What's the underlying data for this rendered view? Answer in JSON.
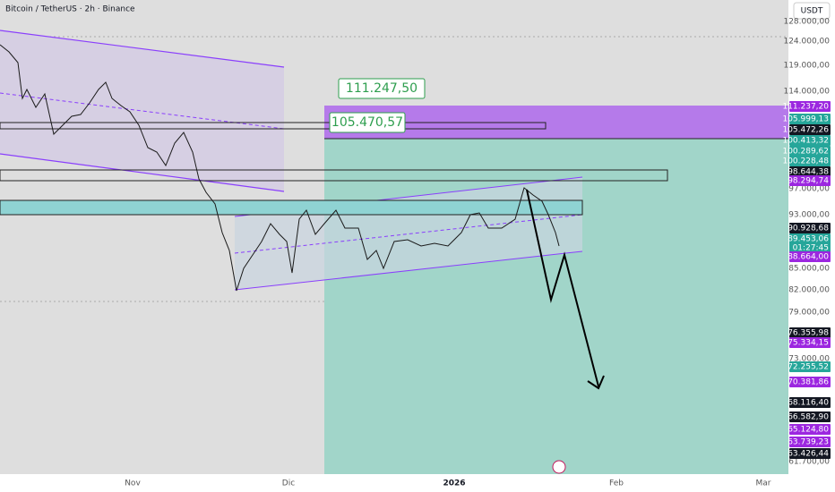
{
  "header": {
    "title": "Bitcoin / TetherUS · 2h · Binance",
    "currency_button": "USDT"
  },
  "price_scale": {
    "labels": [
      "128.000,00",
      "124.000,00",
      "119.000,00",
      "114.000,00",
      "97.000,00",
      "93.000,00",
      "85.000,00",
      "82.000,00",
      "79.000,00",
      "73.000,00",
      "61.700,00"
    ]
  },
  "price_tags": [
    "111.237,20",
    "105.999,13",
    "105.472,26",
    "100.413,32",
    "100.289,62",
    "100.228,48",
    "98.644,38",
    "98.294,74",
    "90.928,68",
    "89.453,06",
    "01:27:45",
    "88.664,00",
    "76.355,98",
    "75.334,15",
    "72.255,52",
    "70.381,86",
    "68.116,40",
    "66.582,90",
    "65.124,80",
    "63.739,23",
    "63.426,44"
  ],
  "time_scale": {
    "labels": [
      "Nov",
      "Dic",
      "2026",
      "Feb",
      "Mar"
    ]
  },
  "callouts": [
    "111.247,50",
    "105.470,57"
  ]
}
